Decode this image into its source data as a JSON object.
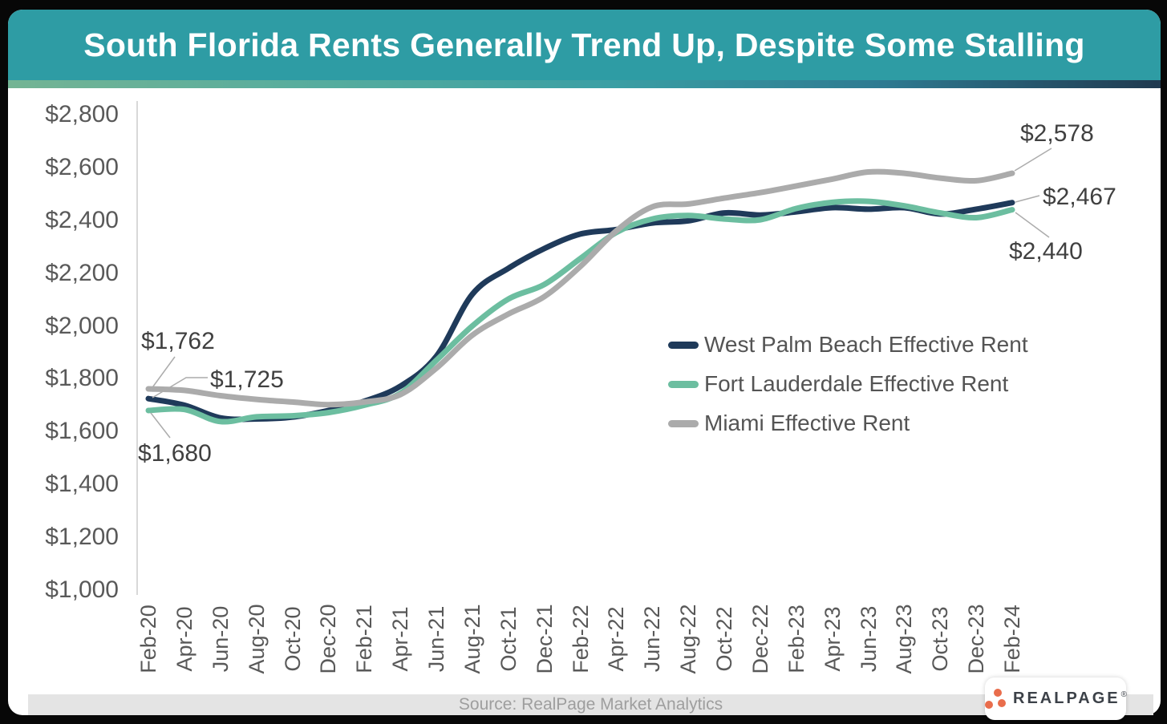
{
  "header": {
    "title": "South Florida Rents Generally Trend Up, Despite Some Stalling"
  },
  "footer": {
    "source": "Source: RealPage Market Analytics",
    "logo_text": "REALPAGE",
    "logo_mark": "®"
  },
  "colors": {
    "header_teal": "#2E9CA4",
    "strip_gradient": [
      "#74B494",
      "#3B9FA4",
      "#20394F"
    ],
    "west_palm_beach_navy": "#1F3A5A",
    "fort_lauderdale_green": "#6CBEA0",
    "miami_gray": "#ABABAB",
    "logo_orange": "#E96D4C",
    "axis_text": "#595959",
    "annotation_text": "#404040"
  },
  "chart_data": {
    "type": "line",
    "title": "South Florida Rents Generally Trend Up, Despite Some Stalling",
    "xlabel": "",
    "ylabel": "",
    "ylim": [
      1000,
      2800
    ],
    "grid": false,
    "legend_position": "middle-right",
    "y_ticks": [
      2800,
      2600,
      2400,
      2200,
      2000,
      1800,
      1600,
      1400,
      1200,
      1000
    ],
    "y_tick_labels": [
      "$2,800",
      "$2,600",
      "$2,400",
      "$2,200",
      "$2,000",
      "$1,800",
      "$1,600",
      "$1,400",
      "$1,200",
      "$1,000"
    ],
    "categories": [
      "Feb-20",
      "Apr-20",
      "Jun-20",
      "Aug-20",
      "Oct-20",
      "Dec-20",
      "Feb-21",
      "Apr-21",
      "Jun-21",
      "Aug-21",
      "Oct-21",
      "Dec-21",
      "Feb-22",
      "Apr-22",
      "Jun-22",
      "Aug-22",
      "Oct-22",
      "Dec-22",
      "Feb-23",
      "Apr-23",
      "Jun-23",
      "Aug-23",
      "Oct-23",
      "Dec-23",
      "Feb-24"
    ],
    "series": [
      {
        "name": "West Palm Beach Effective Rent",
        "color": "#1F3A5A",
        "values": [
          1725,
          1700,
          1652,
          1648,
          1655,
          1680,
          1715,
          1772,
          1885,
          2120,
          2218,
          2293,
          2348,
          2365,
          2390,
          2398,
          2428,
          2420,
          2432,
          2448,
          2442,
          2448,
          2424,
          2442,
          2467
        ]
      },
      {
        "name": "Fort Lauderdale Effective Rent",
        "color": "#6CBEA0",
        "values": [
          1680,
          1684,
          1638,
          1656,
          1660,
          1672,
          1700,
          1745,
          1870,
          2000,
          2102,
          2157,
          2255,
          2354,
          2405,
          2418,
          2405,
          2402,
          2445,
          2468,
          2472,
          2455,
          2428,
          2410,
          2440
        ]
      },
      {
        "name": "Miami Effective Rent",
        "color": "#ABABAB",
        "values": [
          1762,
          1756,
          1736,
          1722,
          1712,
          1702,
          1712,
          1740,
          1840,
          1965,
          2045,
          2111,
          2225,
          2360,
          2451,
          2462,
          2484,
          2505,
          2530,
          2556,
          2583,
          2578,
          2560,
          2550,
          2578
        ]
      }
    ],
    "annotations": [
      {
        "text": "$1,762",
        "series": "Miami Effective Rent",
        "category": "Feb-20",
        "value": 1762
      },
      {
        "text": "$1,725",
        "series": "West Palm Beach Effective Rent",
        "category": "Feb-20",
        "value": 1725
      },
      {
        "text": "$1,680",
        "series": "Fort Lauderdale Effective Rent",
        "category": "Feb-20",
        "value": 1680
      },
      {
        "text": "$2,578",
        "series": "Miami Effective Rent",
        "category": "Feb-24",
        "value": 2578
      },
      {
        "text": "$2,467",
        "series": "West Palm Beach Effective Rent",
        "category": "Feb-24",
        "value": 2467
      },
      {
        "text": "$2,440",
        "series": "Fort Lauderdale Effective Rent",
        "category": "Feb-24",
        "value": 2440
      }
    ]
  }
}
